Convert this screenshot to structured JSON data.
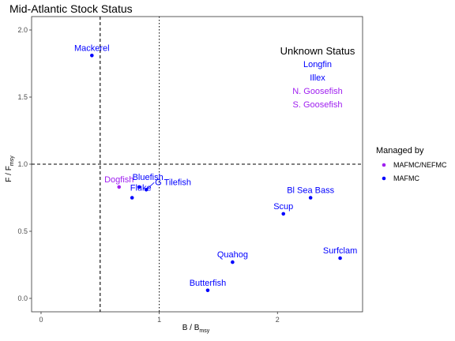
{
  "chart_data": {
    "type": "scatter",
    "title": "Mid-Atlantic Stock Status",
    "xlabel": {
      "main": "B / B",
      "sub": "msy"
    },
    "ylabel": {
      "main": "F / F",
      "sub": "msy"
    },
    "xlim": [
      -0.08,
      2.72
    ],
    "ylim": [
      -0.1,
      2.1
    ],
    "x_ticks": [
      0,
      1,
      2
    ],
    "y_ticks": [
      0.0,
      0.5,
      1.0,
      1.5,
      2.0
    ],
    "x_tick_labels": [
      "0",
      "1",
      "2"
    ],
    "y_tick_labels": [
      "0.0",
      "0.5",
      "1.0",
      "1.5",
      "2.0"
    ],
    "grid": false,
    "reference_lines": [
      {
        "axis": "x",
        "value": 0.5,
        "style": "dashed"
      },
      {
        "axis": "x",
        "value": 1.0,
        "style": "dotted"
      },
      {
        "axis": "y",
        "value": 1.0,
        "style": "dashed"
      }
    ],
    "legend": {
      "title": "Managed by",
      "placement": "right",
      "entries": [
        {
          "label": "MAFMC/NEFMC",
          "color": "#a020f0"
        },
        {
          "label": "MAFMC",
          "color": "#0000ff"
        }
      ]
    },
    "points": [
      {
        "name": "Mackerel",
        "x": 0.43,
        "y": 1.81,
        "group": "MAFMC",
        "label_pos": "above"
      },
      {
        "name": "Dogfish",
        "x": 0.66,
        "y": 0.83,
        "group": "MAFMC/NEFMC",
        "label_pos": "above"
      },
      {
        "name": "Bluefish",
        "x": 0.83,
        "y": 0.83,
        "group": "MAFMC",
        "label_pos": "above-right"
      },
      {
        "name": "Fluke",
        "x": 0.77,
        "y": 0.75,
        "group": "MAFMC",
        "label_pos": "above-right"
      },
      {
        "name": "G Tilefish",
        "x": 0.89,
        "y": 0.81,
        "group": "MAFMC",
        "label_pos": "leader"
      },
      {
        "name": "Bl Sea Bass",
        "x": 2.28,
        "y": 0.75,
        "group": "MAFMC",
        "label_pos": "above"
      },
      {
        "name": "Scup",
        "x": 2.05,
        "y": 0.63,
        "group": "MAFMC",
        "label_pos": "above"
      },
      {
        "name": "Surfclam",
        "x": 2.53,
        "y": 0.3,
        "group": "MAFMC",
        "label_pos": "above"
      },
      {
        "name": "Quahog",
        "x": 1.62,
        "y": 0.27,
        "group": "MAFMC",
        "label_pos": "above"
      },
      {
        "name": "Butterfish",
        "x": 1.41,
        "y": 0.06,
        "group": "MAFMC",
        "label_pos": "above"
      }
    ],
    "unknown_status": {
      "title": "Unknown Status",
      "items": [
        {
          "name": "Longfin",
          "group": "MAFMC"
        },
        {
          "name": "Illex",
          "group": "MAFMC"
        },
        {
          "name": "N. Goosefish",
          "group": "MAFMC/NEFMC"
        },
        {
          "name": "S. Goosefish",
          "group": "MAFMC/NEFMC"
        }
      ]
    },
    "colors": {
      "MAFMC": "#0000ff",
      "MAFMC/NEFMC": "#a020f0"
    }
  }
}
